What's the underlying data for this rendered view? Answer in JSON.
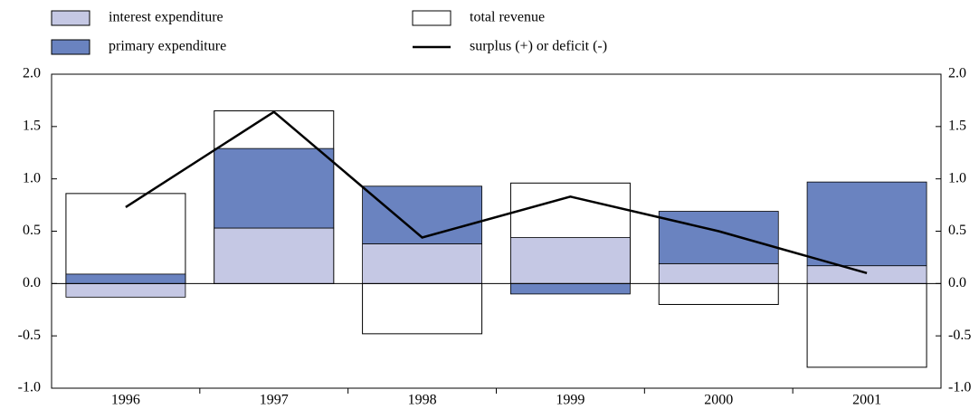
{
  "chart_data": {
    "type": "bar",
    "categories": [
      "1996",
      "1997",
      "1998",
      "1999",
      "2000",
      "2001"
    ],
    "series": [
      {
        "name": "interest expenditure",
        "color": "#c5c8e4",
        "kind": "stack",
        "values": [
          -0.13,
          0.53,
          0.38,
          0.44,
          0.19,
          0.17
        ]
      },
      {
        "name": "primary expenditure",
        "color": "#6a83c0",
        "kind": "stack",
        "values": [
          0.09,
          0.76,
          0.55,
          -0.1,
          0.5,
          0.8
        ]
      },
      {
        "name": "total revenue",
        "color": "#ffffff",
        "kind": "outline",
        "values": [
          0.86,
          1.65,
          -0.48,
          0.96,
          -0.2,
          -0.8
        ]
      },
      {
        "name": "surplus (+) or deficit (-)",
        "color": "#000000",
        "kind": "line",
        "values": [
          0.73,
          1.64,
          0.44,
          0.83,
          0.5,
          0.1
        ]
      }
    ],
    "ylim": [
      -1.0,
      2.0
    ],
    "yticks": [
      {
        "value": -1.0,
        "label": "-1.0"
      },
      -0.5,
      {
        "value": 0,
        "label": "0.0"
      },
      0.5,
      {
        "value": 1.0,
        "label": "1.0"
      },
      1.5,
      {
        "value": 2.0,
        "label": "2.0"
      }
    ],
    "legend": "top-left"
  }
}
